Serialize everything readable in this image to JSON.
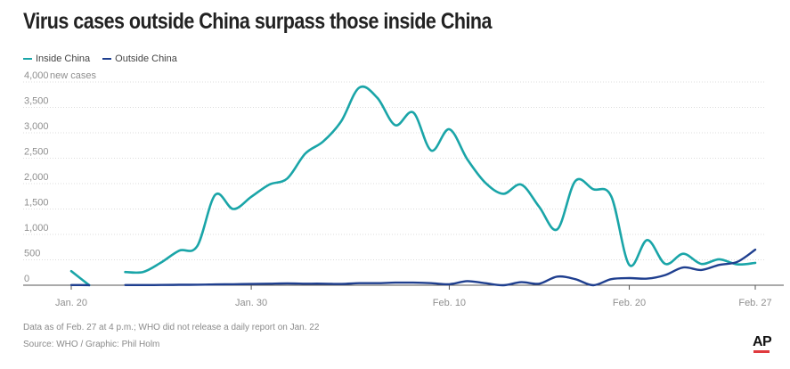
{
  "title": "Virus cases outside China surpass those inside China",
  "legend": [
    {
      "label": "Inside China",
      "color": "#1aa5a8"
    },
    {
      "label": "Outside China",
      "color": "#1f3f8f"
    }
  ],
  "notes": {
    "line1": "Data as of Feb. 27 at 4 p.m.; WHO did not release a daily report on Jan. 22",
    "line2": "Source: WHO / Graphic: Phil Holm"
  },
  "logo": "AP",
  "chart_data": {
    "type": "line",
    "title": "Virus cases outside China surpass those inside China",
    "x": [
      "Jan. 20",
      "Jan. 21",
      "Jan. 23",
      "Jan. 24",
      "Jan. 25",
      "Jan. 26",
      "Jan. 27",
      "Jan. 28",
      "Jan. 29",
      "Jan. 30",
      "Jan. 31",
      "Feb. 1",
      "Feb. 2",
      "Feb. 3",
      "Feb. 4",
      "Feb. 5",
      "Feb. 6",
      "Feb. 7",
      "Feb. 8",
      "Feb. 9",
      "Feb. 10",
      "Feb. 11",
      "Feb. 12",
      "Feb. 13",
      "Feb. 14",
      "Feb. 15",
      "Feb. 16",
      "Feb. 17",
      "Feb. 18",
      "Feb. 19",
      "Feb. 20",
      "Feb. 21",
      "Feb. 22",
      "Feb. 23",
      "Feb. 24",
      "Feb. 25",
      "Feb. 26",
      "Feb. 27"
    ],
    "series": [
      {
        "name": "Inside China",
        "color": "#1aa5a8",
        "values": [
          278,
          0,
          259,
          261,
          450,
          680,
          770,
          1780,
          1500,
          1740,
          1980,
          2100,
          2590,
          2830,
          3230,
          3890,
          3690,
          3150,
          3400,
          2650,
          3070,
          2480,
          2020,
          1800,
          1980,
          1540,
          1100,
          2050,
          1890,
          1750,
          400,
          890,
          420,
          620,
          420,
          510,
          410,
          440
        ]
      },
      {
        "name": "Outside China",
        "color": "#1f3f8f",
        "values": [
          4,
          2,
          3,
          4,
          5,
          8,
          10,
          15,
          20,
          25,
          30,
          35,
          30,
          30,
          25,
          40,
          40,
          50,
          50,
          40,
          20,
          80,
          40,
          0,
          60,
          30,
          170,
          120,
          0,
          120,
          140,
          130,
          200,
          350,
          300,
          400,
          460,
          700
        ]
      }
    ],
    "y_ticks": [
      "0",
      "500",
      "1,000",
      "1,500",
      "2,000",
      "2,500",
      "3,000",
      "3,500",
      "4,000"
    ],
    "y_unit_label": "new cases",
    "x_ticks": [
      "Jan. 20",
      "Jan. 30",
      "Feb. 10",
      "Feb. 20",
      "Feb. 27"
    ],
    "ylim": [
      0,
      4000
    ],
    "grid": true,
    "legend_position": "top-left"
  }
}
